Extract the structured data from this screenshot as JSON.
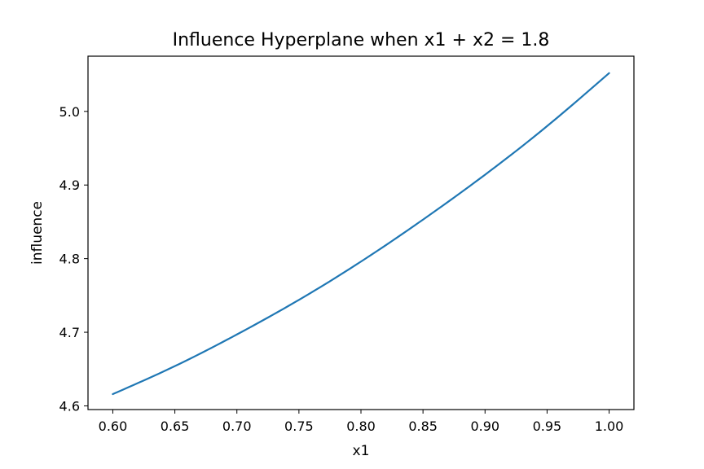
{
  "chart_data": {
    "type": "line",
    "title": "Influence Hyperplane when x1 + x2 = 1.8",
    "xlabel": "x1",
    "ylabel": "influence",
    "xlim": [
      0.58,
      1.02
    ],
    "ylim": [
      4.595,
      5.075
    ],
    "grid": false,
    "legend": "none",
    "line_color": "#1f77b4",
    "x_ticks": [
      {
        "value": 0.6,
        "label": "0.60"
      },
      {
        "value": 0.65,
        "label": "0.65"
      },
      {
        "value": 0.7,
        "label": "0.70"
      },
      {
        "value": 0.75,
        "label": "0.75"
      },
      {
        "value": 0.8,
        "label": "0.80"
      },
      {
        "value": 0.85,
        "label": "0.85"
      },
      {
        "value": 0.9,
        "label": "0.90"
      },
      {
        "value": 0.95,
        "label": "0.95"
      },
      {
        "value": 1.0,
        "label": "1.00"
      }
    ],
    "y_ticks": [
      {
        "value": 4.6,
        "label": "4.6"
      },
      {
        "value": 4.7,
        "label": "4.7"
      },
      {
        "value": 4.8,
        "label": "4.8"
      },
      {
        "value": 4.9,
        "label": "4.9"
      },
      {
        "value": 5.0,
        "label": "5.0"
      }
    ],
    "series": [
      {
        "x": [
          0.6,
          0.65,
          0.7,
          0.75,
          0.8,
          0.85,
          0.9,
          0.95,
          1.0
        ],
        "y": [
          4.616,
          4.654,
          4.697,
          4.744,
          4.796,
          4.853,
          4.914,
          4.98,
          5.052
        ]
      }
    ]
  }
}
